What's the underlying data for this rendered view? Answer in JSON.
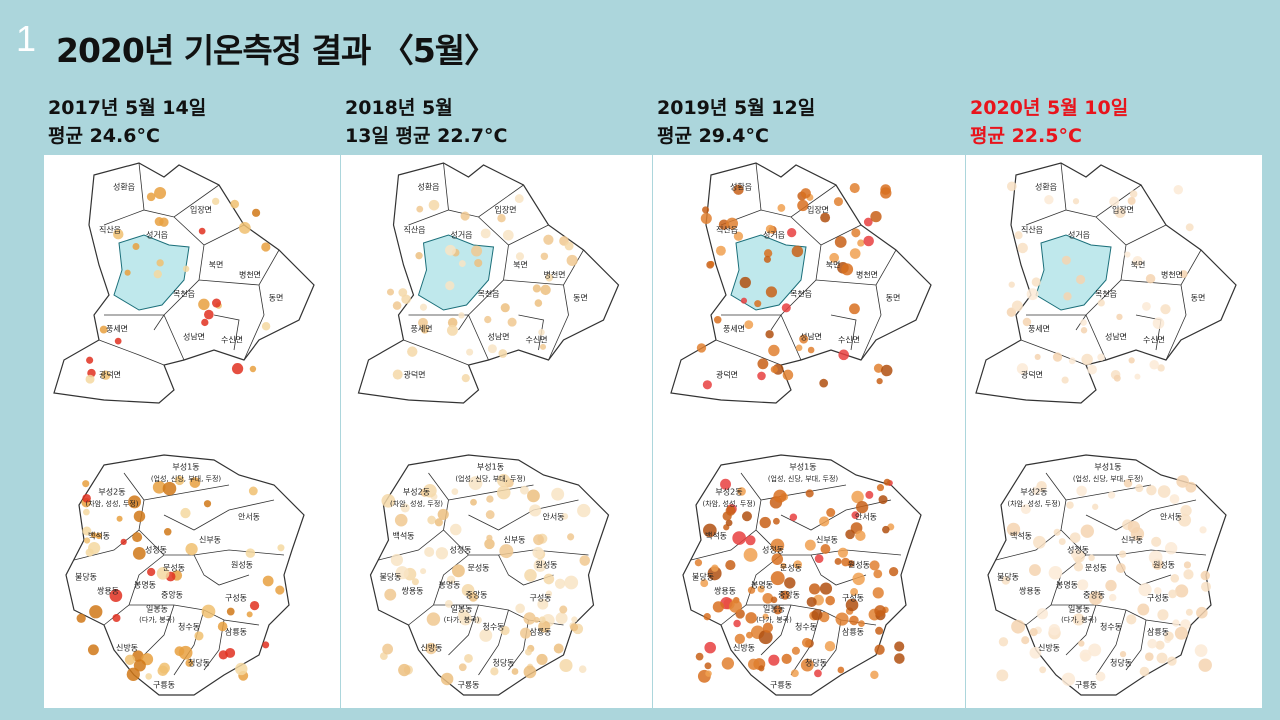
{
  "slide": {
    "number": "1",
    "title": "2020년 기온측정 결과 〈5월〉"
  },
  "panels": [
    {
      "heading": [
        "2017년 5월 14일",
        "평균 24.6°C"
      ],
      "highlight": false
    },
    {
      "heading": [
        "2018년 5월",
        "13일 평균 22.7°C"
      ],
      "highlight": false
    },
    {
      "heading": [
        "2019년 5월 12일",
        "평균 29.4°C"
      ],
      "highlight": false
    },
    {
      "heading": [
        "2020년 5월 10일",
        "평균 22.5°C"
      ],
      "highlight": true
    }
  ],
  "upper_map_labels": [
    "성환읍",
    "입장면",
    "직산읍",
    "성거읍",
    "북면",
    "병천면",
    "목천읍",
    "동면",
    "풍세면",
    "성남면",
    "수신면",
    "광덕면"
  ],
  "lower_map_labels": [
    "부성1동",
    "(업성, 신당, 부대, 두정)",
    "부성2동",
    "(차암, 성성, 두정)",
    "안서동",
    "백석동",
    "성정동",
    "신부동",
    "원성동",
    "불당동",
    "쌍용동",
    "봉명동",
    "문성동",
    "중앙동",
    "일봉동",
    "(다가, 봉곡)",
    "구성동",
    "청수동",
    "삼룡동",
    "신방동",
    "청당동",
    "구룡동"
  ]
}
